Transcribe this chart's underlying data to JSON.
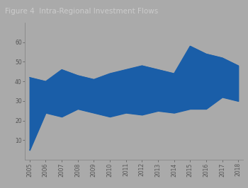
{
  "title": "Figure 4  Intra-Regional Investment Flows",
  "background_color": "#aaaaaa",
  "title_bg_color": "#606060",
  "plot_bg_color": "#aaaaaa",
  "fill_color": "#1a5ea8",
  "line_color": "#1a5ea8",
  "years": [
    2005,
    2006,
    2007,
    2008,
    2009,
    2010,
    2011,
    2012,
    2013,
    2014,
    2015,
    2016,
    2017,
    2018
  ],
  "upper": [
    42,
    40,
    46,
    43,
    41,
    44,
    46,
    48,
    46,
    44,
    58,
    54,
    52,
    48
  ],
  "lower": [
    5,
    24,
    22,
    26,
    24,
    22,
    24,
    23,
    25,
    24,
    26,
    26,
    32,
    30
  ],
  "ylim": [
    0,
    70
  ],
  "yticks": [
    10,
    20,
    30,
    40,
    50,
    60
  ],
  "ytick_labels": [
    "10",
    "20",
    "30",
    "40",
    "50",
    "60"
  ],
  "xlabel": "",
  "ylabel": "",
  "title_fontsize": 7.5,
  "tick_fontsize": 5.5,
  "title_color": "#cccccc",
  "tick_color": "#555555",
  "spine_color": "#888888",
  "xstart": 2005,
  "xend": 2018
}
